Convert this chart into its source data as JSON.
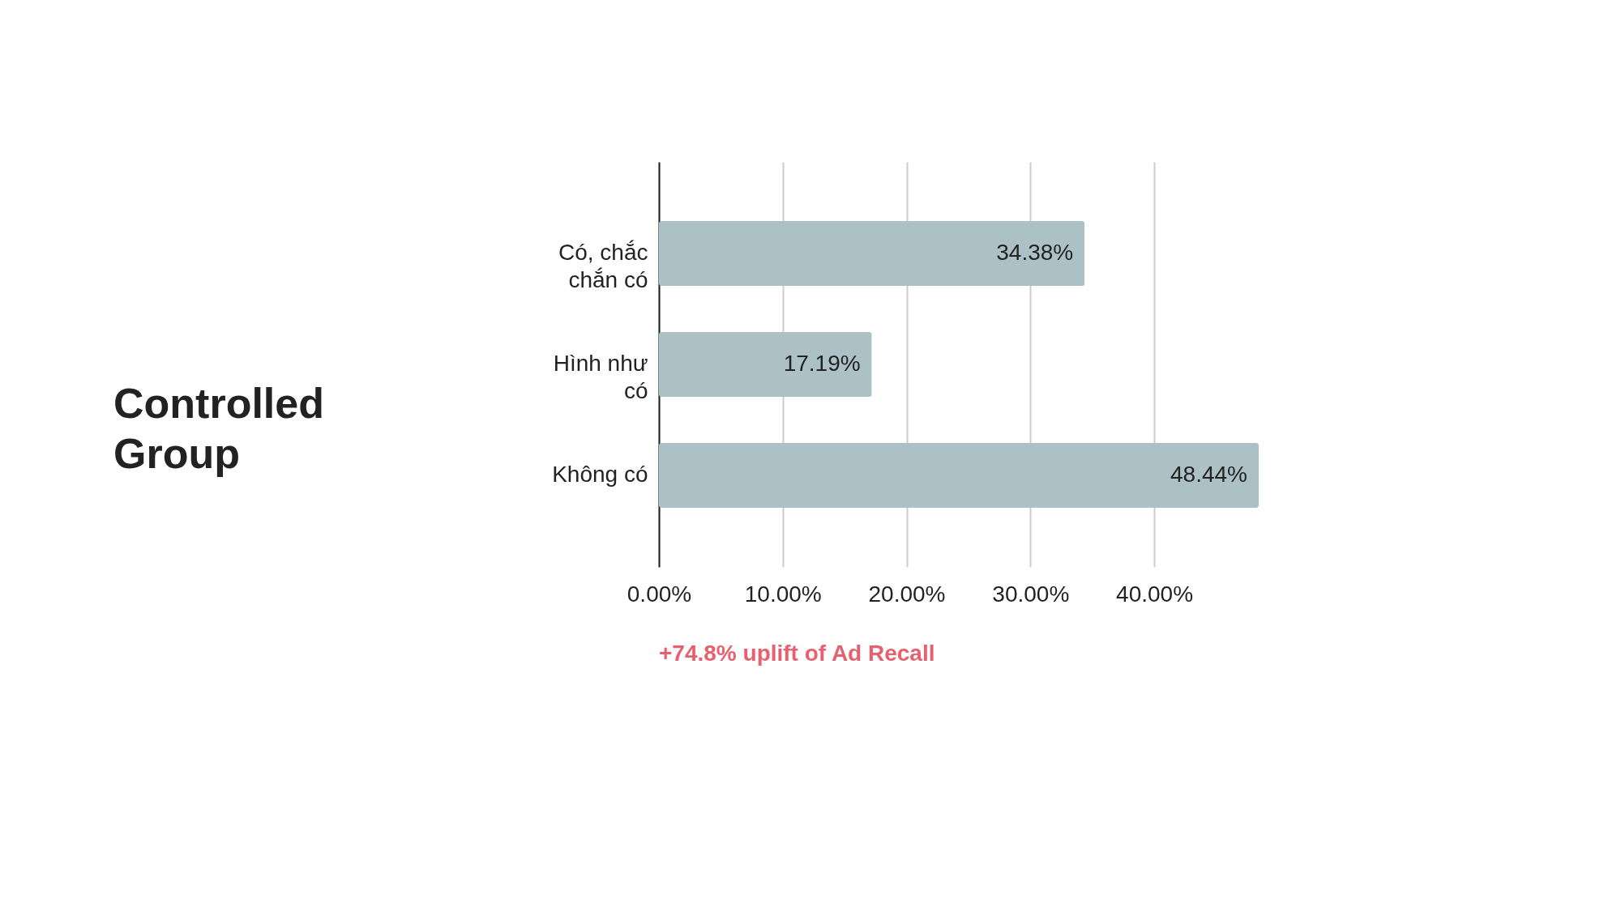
{
  "chart_data": {
    "type": "bar",
    "orientation": "horizontal",
    "title": "Controlled Group",
    "categories": [
      "Có, chắc chắn có",
      "Hình như có",
      "Không có"
    ],
    "values": [
      34.38,
      17.19,
      48.44
    ],
    "value_labels": [
      "34.38%",
      "17.19%",
      "48.44%"
    ],
    "color": "#abc1c6",
    "xlim": [
      0,
      48.44
    ],
    "xticks": [
      {
        "value": 0,
        "label": "0.00%"
      },
      {
        "value": 10,
        "label": "10.00%"
      },
      {
        "value": 20,
        "label": "20.00%"
      },
      {
        "value": 30,
        "label": "30.00%"
      },
      {
        "value": 40,
        "label": "40.00%"
      }
    ],
    "grid": "x",
    "annotations": [
      "+74.8% uplift of Ad Recall"
    ]
  }
}
